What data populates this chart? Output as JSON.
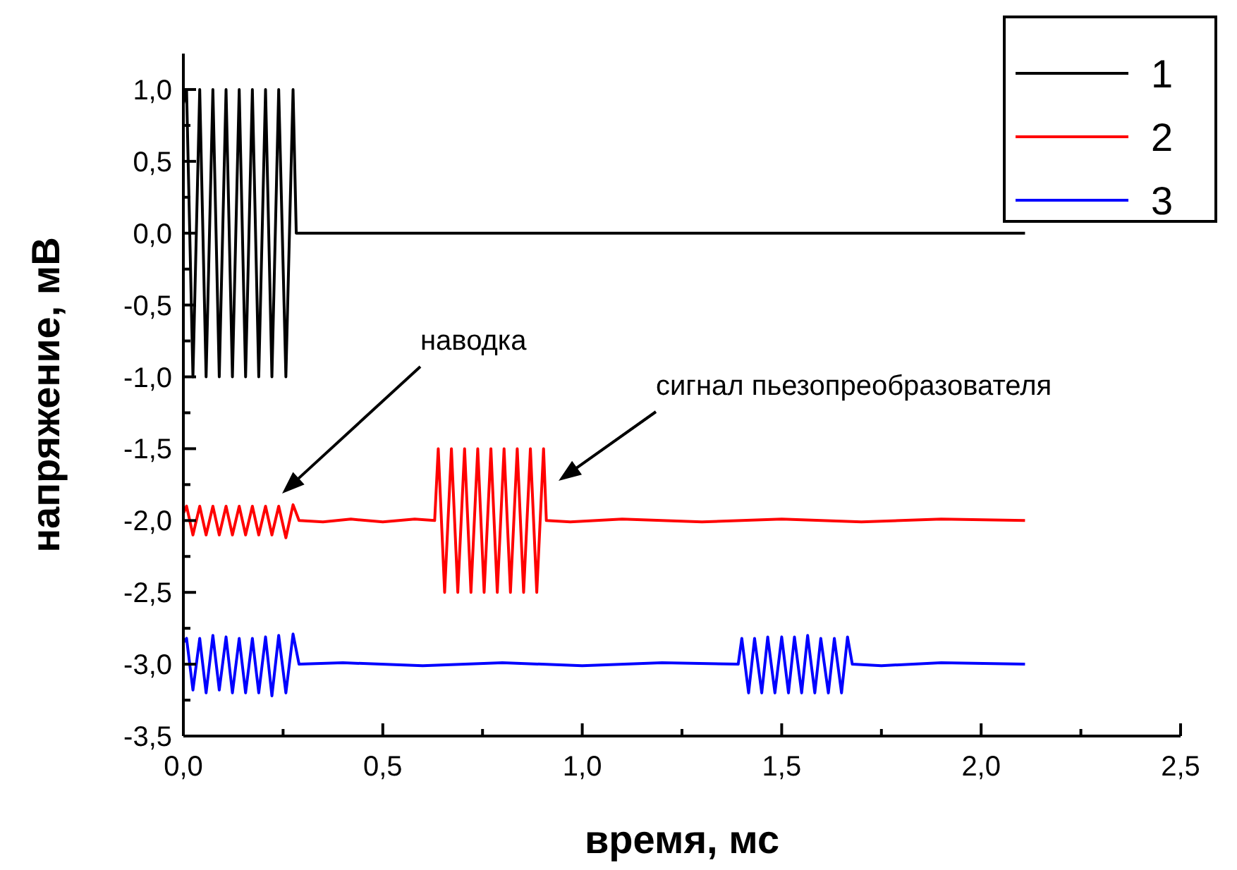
{
  "chart_data": {
    "type": "line",
    "xlabel": "время, мс",
    "ylabel": "напряжение, мВ",
    "xlim": [
      0,
      2.5
    ],
    "ylim": [
      -3.5,
      1.25
    ],
    "xticks": [
      {
        "value": 0,
        "label": "0,0"
      },
      {
        "value": 0.25,
        "label": null
      },
      {
        "value": 0.5,
        "label": "0,5"
      },
      {
        "value": 0.75,
        "label": null
      },
      {
        "value": 1,
        "label": "1,0"
      },
      {
        "value": 1.25,
        "label": null
      },
      {
        "value": 1.5,
        "label": "1,5"
      },
      {
        "value": 1.75,
        "label": null
      },
      {
        "value": 2,
        "label": "2,0"
      },
      {
        "value": 2.25,
        "label": null
      },
      {
        "value": 2.5,
        "label": "2,5"
      }
    ],
    "yticks": [
      {
        "value": -3.5,
        "label": "-3,5"
      },
      {
        "value": -3.25,
        "label": null
      },
      {
        "value": -3,
        "label": "-3,0"
      },
      {
        "value": -2.75,
        "label": null
      },
      {
        "value": -2.5,
        "label": "-2,5"
      },
      {
        "value": -2.25,
        "label": null
      },
      {
        "value": -2,
        "label": "-2,0"
      },
      {
        "value": -1.75,
        "label": null
      },
      {
        "value": -1.5,
        "label": "-1,5"
      },
      {
        "value": -1.25,
        "label": null
      },
      {
        "value": -1,
        "label": "-1,0"
      },
      {
        "value": -0.75,
        "label": null
      },
      {
        "value": -0.5,
        "label": "-0,5"
      },
      {
        "value": -0.25,
        "label": null
      },
      {
        "value": 0,
        "label": "0,0"
      },
      {
        "value": 0.25,
        "label": null
      },
      {
        "value": 0.5,
        "label": "0,5"
      },
      {
        "value": 0.75,
        "label": null
      },
      {
        "value": 1,
        "label": "1,0"
      }
    ],
    "grid": false,
    "legend": "top right",
    "marker": "none",
    "line_style": "solid",
    "annotations": [
      "наводка",
      "сигнал пьезопреобразователя"
    ],
    "series": [
      {
        "name": "1",
        "color": "#000000",
        "x": [
          0,
          0.008,
          0.024,
          0.041,
          0.057,
          0.074,
          0.09,
          0.107,
          0.123,
          0.14,
          0.156,
          0.173,
          0.189,
          0.206,
          0.222,
          0.239,
          0.257,
          0.275,
          0.283,
          2.11
        ],
        "values": [
          0.9,
          1,
          -1,
          1,
          -1,
          1,
          -1,
          1,
          -1,
          1,
          -1,
          1,
          -1,
          1,
          -1,
          1,
          -1,
          1,
          0,
          0
        ]
      },
      {
        "name": "2",
        "color": "#ff0000",
        "x": [
          0,
          0.008,
          0.024,
          0.041,
          0.057,
          0.074,
          0.09,
          0.107,
          0.123,
          0.14,
          0.156,
          0.173,
          0.189,
          0.206,
          0.222,
          0.239,
          0.257,
          0.275,
          0.29,
          0.35,
          0.42,
          0.5,
          0.58,
          0.63,
          0.639,
          0.655,
          0.672,
          0.688,
          0.705,
          0.721,
          0.738,
          0.754,
          0.771,
          0.787,
          0.804,
          0.82,
          0.837,
          0.853,
          0.87,
          0.886,
          0.903,
          0.91,
          0.97,
          1.1,
          1.3,
          1.5,
          1.7,
          1.9,
          2.11
        ],
        "values": [
          -1.95,
          -1.9,
          -2.1,
          -1.9,
          -2.1,
          -1.9,
          -2.1,
          -1.9,
          -2.1,
          -1.9,
          -2.1,
          -1.9,
          -2.1,
          -1.9,
          -2.1,
          -1.9,
          -2.12,
          -1.89,
          -2,
          -2.01,
          -1.99,
          -2.01,
          -1.99,
          -2,
          -1.5,
          -2.5,
          -1.5,
          -2.5,
          -1.5,
          -2.5,
          -1.5,
          -2.5,
          -1.5,
          -2.5,
          -1.5,
          -2.5,
          -1.5,
          -2.5,
          -1.5,
          -2.5,
          -1.5,
          -2,
          -2.01,
          -1.99,
          -2.01,
          -1.99,
          -2.01,
          -1.99,
          -2
        ]
      },
      {
        "name": "3",
        "color": "#0000ff",
        "x": [
          0,
          0.008,
          0.024,
          0.041,
          0.057,
          0.074,
          0.09,
          0.107,
          0.123,
          0.14,
          0.156,
          0.173,
          0.189,
          0.206,
          0.222,
          0.239,
          0.257,
          0.275,
          0.29,
          0.4,
          0.6,
          0.8,
          1,
          1.2,
          1.391,
          1.4,
          1.417,
          1.432,
          1.45,
          1.465,
          1.483,
          1.5,
          1.517,
          1.532,
          1.55,
          1.565,
          1.583,
          1.598,
          1.617,
          1.632,
          1.65,
          1.665,
          1.677,
          1.75,
          1.9,
          2.11
        ],
        "values": [
          -2.85,
          -2.82,
          -3.18,
          -2.82,
          -3.2,
          -2.8,
          -3.18,
          -2.81,
          -3.2,
          -2.82,
          -3.2,
          -2.82,
          -3.2,
          -2.81,
          -3.22,
          -2.8,
          -3.2,
          -2.79,
          -3,
          -2.99,
          -3.01,
          -2.99,
          -3.01,
          -2.99,
          -3,
          -2.82,
          -3.2,
          -2.82,
          -3.2,
          -2.81,
          -3.2,
          -2.81,
          -3.2,
          -2.81,
          -3.2,
          -2.8,
          -3.2,
          -2.82,
          -3.2,
          -2.82,
          -3.2,
          -2.81,
          -3,
          -3.01,
          -2.99,
          -3
        ]
      }
    ]
  }
}
